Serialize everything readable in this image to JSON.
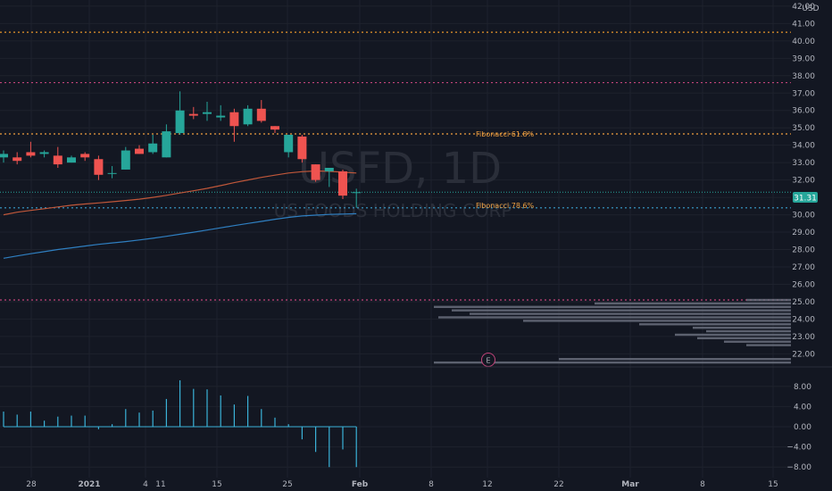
{
  "currency": "USD",
  "watermark": {
    "symbol": "USFD, 1D",
    "name": "US FOODS HOLDING CORP"
  },
  "current_price_label": "31.31",
  "earnings_marker": "E",
  "fib_labels": {
    "fib618": "Fibonacci 61.8%",
    "fib786": "Fibonacci 78.6%"
  },
  "colors": {
    "background": "#131722",
    "grid": "#1e222d",
    "up": "#26a69a",
    "down": "#ef5350",
    "sma_fast": "#c0573a",
    "sma_slow": "#2f7fc1",
    "fib618": "#f0a040",
    "fib786": "#3aa0d0",
    "level_orange": "#e8962a",
    "level_pink": "#c2447a",
    "price_badge": "#26a69a",
    "histogram": "#3bb2d8"
  },
  "chart_data": {
    "type": "candlestick",
    "price_axis": {
      "range": [
        21.3,
        42.2
      ],
      "ticks": [
        "22.00",
        "23.00",
        "24.00",
        "25.00",
        "26.00",
        "27.00",
        "28.00",
        "29.00",
        "30.00",
        "31.00",
        "32.00",
        "33.00",
        "34.00",
        "35.00",
        "36.00",
        "37.00",
        "38.00",
        "39.00",
        "40.00",
        "41.00",
        "42.00"
      ]
    },
    "time_axis": {
      "labels": [
        "28",
        "2021",
        "4",
        "11",
        "15",
        "25",
        "Feb",
        "8",
        "12",
        "22",
        "Mar",
        "8",
        "15"
      ]
    },
    "candles": [
      {
        "o": 33.3,
        "h": 33.7,
        "l": 33.0,
        "c": 33.5
      },
      {
        "o": 33.3,
        "h": 33.6,
        "l": 32.9,
        "c": 33.1
      },
      {
        "o": 33.6,
        "h": 34.2,
        "l": 33.3,
        "c": 33.4
      },
      {
        "o": 33.5,
        "h": 33.7,
        "l": 33.3,
        "c": 33.6
      },
      {
        "o": 33.4,
        "h": 33.9,
        "l": 32.7,
        "c": 32.9
      },
      {
        "o": 33.0,
        "h": 33.4,
        "l": 33.0,
        "c": 33.3
      },
      {
        "o": 33.5,
        "h": 33.6,
        "l": 33.1,
        "c": 33.3
      },
      {
        "o": 33.2,
        "h": 33.4,
        "l": 32.0,
        "c": 32.3
      },
      {
        "o": 32.4,
        "h": 32.8,
        "l": 32.1,
        "c": 32.4
      },
      {
        "o": 32.6,
        "h": 33.9,
        "l": 32.6,
        "c": 33.7
      },
      {
        "o": 33.8,
        "h": 34.0,
        "l": 33.5,
        "c": 33.5
      },
      {
        "o": 33.6,
        "h": 34.6,
        "l": 33.5,
        "c": 34.1
      },
      {
        "o": 33.3,
        "h": 35.2,
        "l": 33.3,
        "c": 34.8
      },
      {
        "o": 34.7,
        "h": 37.1,
        "l": 34.6,
        "c": 36.0
      },
      {
        "o": 35.8,
        "h": 36.2,
        "l": 35.5,
        "c": 35.7
      },
      {
        "o": 35.8,
        "h": 36.5,
        "l": 35.4,
        "c": 35.9
      },
      {
        "o": 35.6,
        "h": 36.3,
        "l": 35.4,
        "c": 35.7
      },
      {
        "o": 35.9,
        "h": 36.1,
        "l": 34.2,
        "c": 35.1
      },
      {
        "o": 35.2,
        "h": 36.3,
        "l": 35.1,
        "c": 36.1
      },
      {
        "o": 36.1,
        "h": 36.6,
        "l": 35.3,
        "c": 35.4
      },
      {
        "o": 35.1,
        "h": 35.1,
        "l": 34.7,
        "c": 34.9
      },
      {
        "o": 33.6,
        "h": 34.6,
        "l": 33.3,
        "c": 34.6
      },
      {
        "o": 34.5,
        "h": 34.6,
        "l": 33.0,
        "c": 33.2
      },
      {
        "o": 32.9,
        "h": 32.9,
        "l": 31.9,
        "c": 32.0
      },
      {
        "o": 32.5,
        "h": 32.7,
        "l": 31.6,
        "c": 32.7
      },
      {
        "o": 32.5,
        "h": 32.6,
        "l": 30.9,
        "c": 31.1
      },
      {
        "o": 31.3,
        "h": 31.5,
        "l": 30.4,
        "c": 31.3
      }
    ],
    "sma_fast": [
      30.0,
      30.15,
      30.25,
      30.35,
      30.45,
      30.55,
      30.62,
      30.68,
      30.75,
      30.82,
      30.9,
      31.0,
      31.12,
      31.25,
      31.38,
      31.52,
      31.68,
      31.85,
      32.0,
      32.15,
      32.28,
      32.4,
      32.48,
      32.52,
      32.5,
      32.45,
      32.4
    ],
    "sma_slow": [
      27.5,
      27.63,
      27.76,
      27.88,
      28.0,
      28.1,
      28.2,
      28.3,
      28.38,
      28.46,
      28.55,
      28.65,
      28.76,
      28.88,
      29.0,
      29.12,
      29.25,
      29.38,
      29.5,
      29.62,
      29.74,
      29.85,
      29.93,
      29.98,
      30.02,
      30.04,
      30.06
    ],
    "levels": [
      {
        "name": "level-40-5",
        "value": 40.5,
        "color": "level_orange"
      },
      {
        "name": "level-37-6",
        "value": 37.6,
        "color": "level_pink"
      },
      {
        "name": "fib-618",
        "value": 34.65,
        "color": "fib618"
      },
      {
        "name": "fib-786",
        "value": 30.4,
        "color": "fib786"
      },
      {
        "name": "level-25-1",
        "value": 25.1,
        "color": "level_pink"
      }
    ],
    "volume_profile": [
      {
        "price": 25.1,
        "width": 50
      },
      {
        "price": 24.9,
        "width": 220
      },
      {
        "price": 24.7,
        "width": 400
      },
      {
        "price": 24.5,
        "width": 380
      },
      {
        "price": 24.3,
        "width": 360
      },
      {
        "price": 24.1,
        "width": 395
      },
      {
        "price": 23.9,
        "width": 300
      },
      {
        "price": 23.7,
        "width": 170
      },
      {
        "price": 23.5,
        "width": 110
      },
      {
        "price": 23.3,
        "width": 95
      },
      {
        "price": 23.1,
        "width": 130
      },
      {
        "price": 22.9,
        "width": 105
      },
      {
        "price": 22.7,
        "width": 75
      },
      {
        "price": 22.5,
        "width": 50
      },
      {
        "price": 21.7,
        "width": 260
      },
      {
        "price": 21.5,
        "width": 400
      }
    ],
    "oscillator": {
      "range": [
        -9.2,
        11.5
      ],
      "ticks": [
        "8.00",
        "4.00",
        "0.00",
        "−4.00",
        "−8.00"
      ],
      "values": [
        3.0,
        2.4,
        3.0,
        1.2,
        2.0,
        2.2,
        2.2,
        -0.5,
        0.5,
        3.5,
        2.8,
        3.2,
        5.5,
        9.2,
        7.5,
        7.4,
        6.2,
        4.4,
        6.1,
        3.5,
        1.8,
        0.5,
        -2.5,
        -5.0,
        -8.0,
        -4.5,
        -8.0
      ]
    }
  }
}
